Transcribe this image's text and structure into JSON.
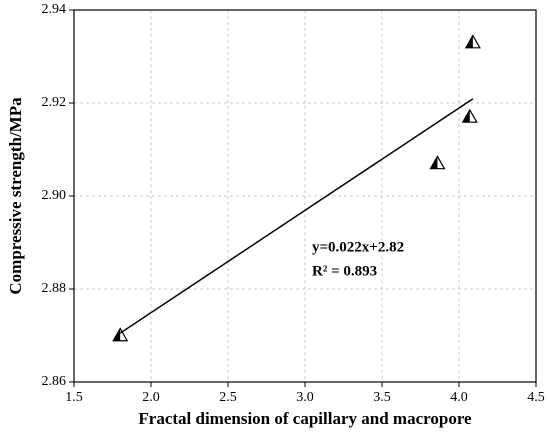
{
  "chart_data": {
    "type": "scatter",
    "x_label": "Fractal dimension of capillary and macropore",
    "y_label": "Compressive strength/MPa",
    "xlim": [
      1.5,
      4.5
    ],
    "ylim": [
      2.86,
      2.94
    ],
    "xticks": [
      1.5,
      {
        "value": 2,
        "label": "2.0"
      },
      2.5,
      {
        "value": 3,
        "label": "3.0"
      },
      3.5,
      {
        "value": 4,
        "label": "4.0"
      },
      4.5
    ],
    "yticks": [
      2.86,
      2.88,
      {
        "value": 2.9,
        "label": "2.90"
      },
      2.92,
      2.94
    ],
    "grid": true,
    "series": [
      {
        "color": "#000000",
        "x": [
          1.8,
          3.86,
          4.07,
          4.09
        ],
        "values": [
          2.87,
          2.907,
          2.917,
          2.933
        ]
      }
    ],
    "fit_line": {
      "color": "#000000",
      "x": [
        1.8,
        4.09
      ],
      "values": [
        2.8705,
        2.9209
      ]
    },
    "annotations": [
      "y=0.022x+2.82",
      "R² = 0.893"
    ]
  }
}
